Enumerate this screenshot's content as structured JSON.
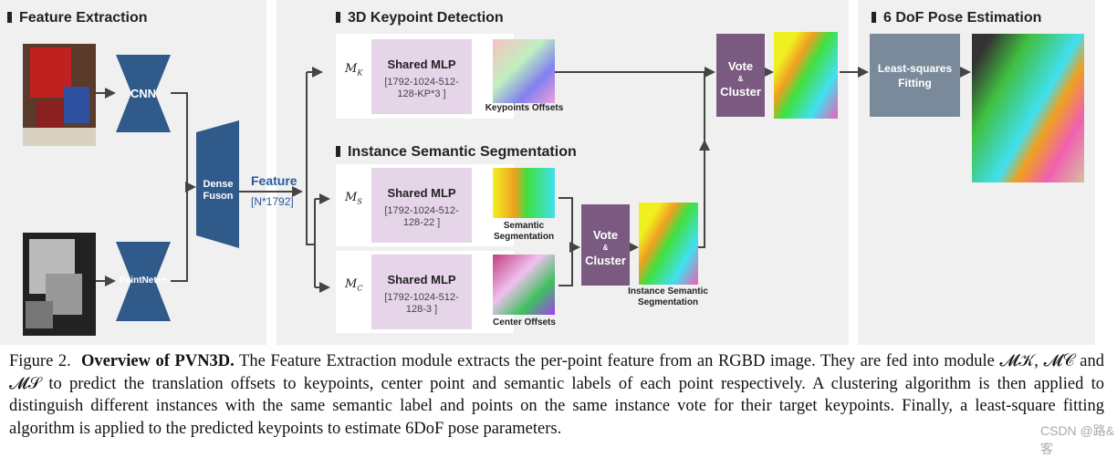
{
  "feature_extraction": {
    "title": "Feature Extraction",
    "cnn": "CNN",
    "pointnet": "PointNet++",
    "dense_fusion": "Dense Fuson",
    "feature_label": "Feature",
    "feature_dim": "[N*1792]"
  },
  "keypoint_detection": {
    "title": "3D Keypoint Detection",
    "module": "M",
    "module_sub": "K",
    "mlp_title": "Shared MLP",
    "mlp_dims": "[1792-1024-512-128-KP*3 ]",
    "output_label": "Keypoints Offsets",
    "vote_top": "Vote",
    "vote_amp": "&",
    "vote_bottom": "Cluster"
  },
  "instance_segmentation": {
    "title": "Instance Semantic Segmentation",
    "semantic": {
      "module": "M",
      "module_sub": "S",
      "mlp_title": "Shared MLP",
      "mlp_dims": "[1792-1024-512-128-22 ]",
      "output_label": "Semantic Segmentation"
    },
    "center": {
      "module": "M",
      "module_sub": "C",
      "mlp_title": "Shared MLP",
      "mlp_dims": "[1792-1024-512-128-3 ]",
      "output_label": "Center Offsets"
    },
    "vote_top": "Vote",
    "vote_amp": "&",
    "vote_bottom": "Cluster",
    "output_label": "Instance Semantic Segmentation"
  },
  "pose_estimation": {
    "title": "6 DoF Pose Estimation",
    "fitting": "Least-squares Fitting"
  },
  "caption": {
    "figure": "Figure 2.",
    "bold": "Overview of PVN3D.",
    "text": "The Feature Extraction module extracts the per-point feature from an RGBD image. They are fed into module 𝓜𝒦, 𝓜𝒞 and 𝓜𝒮 to predict the translation offsets to keypoints, center point and semantic labels of each point respectively. A clustering algorithm is then applied to distinguish different instances with the same semantic label and points on the same instance vote for their target keypoints. Finally, a least-square fitting algorithm is applied to the predicted keypoints to estimate 6DoF pose parameters."
  },
  "watermark": "CSDN @路&客",
  "colors": {
    "encoder": "#2f5a8a",
    "mlp": "#e6d5e8",
    "vote": "#7a5a80",
    "fitting": "#7b8a9a",
    "feature_text": "#2a5a9a"
  }
}
